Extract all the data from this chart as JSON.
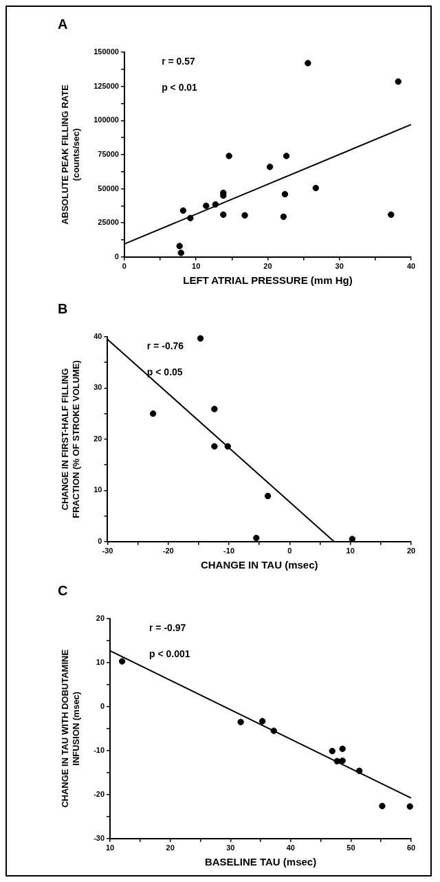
{
  "chart_data": [
    {
      "type": "scatter",
      "title": "A",
      "xlabel": "LEFT ATRIAL PRESSURE (mm Hg)",
      "ylabel": "ABSOLUTE PEAK FILLING RATE (counts/sec)",
      "annotations": [
        "r = 0.57",
        "p < 0.01"
      ],
      "grid": false,
      "xlim": [
        0,
        40
      ],
      "xticks": [
        0,
        {
          "value": 5,
          "label": null
        },
        10,
        {
          "value": 15,
          "label": null
        },
        20,
        {
          "value": 25,
          "label": null
        },
        30,
        {
          "value": 35,
          "label": null
        },
        40
      ],
      "ylim": [
        0,
        150000
      ],
      "yticks": [
        0,
        {
          "value": 12500,
          "label": null
        },
        25000,
        {
          "value": 37500,
          "label": null
        },
        50000,
        {
          "value": 62500,
          "label": null
        },
        75000,
        {
          "value": 87500,
          "label": null
        },
        100000,
        {
          "value": 112500,
          "label": null
        },
        125000,
        {
          "value": 137500,
          "label": null
        },
        150000
      ],
      "series": [
        {
          "marker": "circle",
          "color": "#000000",
          "x": [
            7.7,
            7.9,
            8.2,
            9.2,
            11.4,
            12.7,
            13.8,
            13.8,
            13.8,
            14.6,
            16.8,
            20.3,
            22.2,
            22.4,
            22.6,
            25.6,
            26.7,
            37.2,
            38.2
          ],
          "values": [
            8000,
            3000,
            34000,
            28500,
            37500,
            38500,
            47000,
            45000,
            31000,
            74000,
            30500,
            66000,
            29500,
            46000,
            74000,
            142000,
            50500,
            31000,
            128500
          ]
        },
        {
          "type": "line",
          "marker": "none",
          "color": "#000000",
          "x": [
            0,
            40
          ],
          "values": [
            9500,
            97000
          ]
        }
      ]
    },
    {
      "type": "scatter",
      "title": "B",
      "xlabel": "CHANGE IN TAU (msec)",
      "ylabel": "CHANGE IN FIRST-HALF FILLING FRACTION (% OF STROKE VOLUME)",
      "annotations": [
        "r = -0.76",
        "p < 0.05"
      ],
      "grid": false,
      "xlim": [
        -30,
        20
      ],
      "xticks": [
        -30,
        {
          "value": -25,
          "label": null
        },
        -20,
        {
          "value": -15,
          "label": null
        },
        -10,
        {
          "value": -5,
          "label": null
        },
        0,
        {
          "value": 5,
          "label": null
        },
        10,
        {
          "value": 15,
          "label": null
        },
        20
      ],
      "ylim": [
        0,
        40
      ],
      "yticks": [
        0,
        {
          "value": 5,
          "label": null
        },
        10,
        {
          "value": 15,
          "label": null
        },
        20,
        {
          "value": 25,
          "label": null
        },
        30,
        {
          "value": 35,
          "label": null
        },
        40
      ],
      "series": [
        {
          "marker": "circle",
          "color": "#000000",
          "x": [
            -22.5,
            -14.7,
            -12.4,
            -12.4,
            -10.2,
            -5.5,
            -3.6,
            10.3
          ],
          "values": [
            25,
            39.7,
            25.9,
            18.6,
            18.6,
            0.7,
            8.9,
            0.5
          ]
        },
        {
          "type": "line",
          "marker": "none",
          "color": "#000000",
          "x": [
            -30,
            7.3
          ],
          "values": [
            39.5,
            0
          ]
        }
      ]
    },
    {
      "type": "scatter",
      "title": "C",
      "xlabel": "BASELINE TAU (msec)",
      "ylabel": "CHANGE IN TAU WITH DOBUTAMINE INFUSION (msec)",
      "annotations": [
        "r = -0.97",
        "p < 0.001"
      ],
      "grid": false,
      "xlim": [
        10,
        60
      ],
      "xticks": [
        10,
        {
          "value": 15,
          "label": null
        },
        20,
        {
          "value": 25,
          "label": null
        },
        30,
        {
          "value": 35,
          "label": null
        },
        40,
        {
          "value": 45,
          "label": null
        },
        50,
        {
          "value": 55,
          "label": null
        },
        60
      ],
      "ylim": [
        -30,
        20
      ],
      "yticks": [
        -30,
        {
          "value": -25,
          "label": null
        },
        -20,
        {
          "value": -15,
          "label": null
        },
        -10,
        {
          "value": -5,
          "label": null
        },
        0,
        {
          "value": 5,
          "label": null
        },
        10,
        {
          "value": 15,
          "label": null
        },
        20
      ],
      "series": [
        {
          "marker": "circle",
          "color": "#000000",
          "x": [
            12,
            31.7,
            35.3,
            37.2,
            46.9,
            47.7,
            48.6,
            48.6,
            51.4,
            55.2,
            59.8
          ],
          "values": [
            10.3,
            -3.5,
            -3.3,
            -5.5,
            -10.1,
            -12.4,
            -9.6,
            -12.3,
            -14.6,
            -22.6,
            -22.7
          ]
        },
        {
          "type": "line",
          "marker": "none",
          "color": "#000000",
          "x": [
            10,
            60
          ],
          "values": [
            12.7,
            -20.8
          ]
        }
      ]
    }
  ]
}
